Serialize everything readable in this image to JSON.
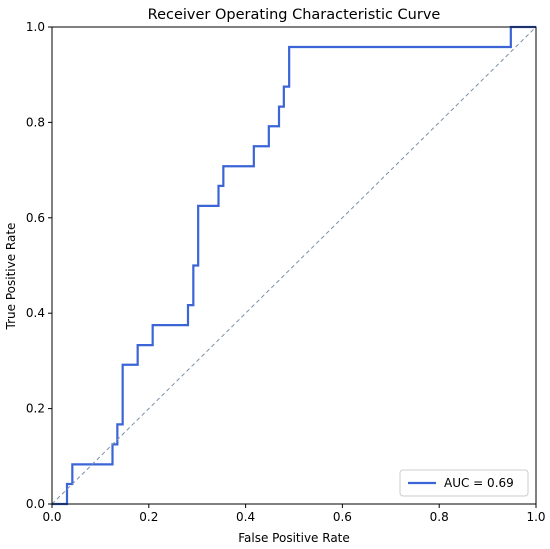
{
  "chart_data": {
    "type": "line",
    "title": "Receiver Operating Characteristic Curve",
    "xlabel": "False Positive Rate",
    "ylabel": "True Positive Rate",
    "xlim": [
      0,
      1
    ],
    "ylim": [
      0,
      1
    ],
    "xticks": [
      0.0,
      0.2,
      0.4,
      0.6,
      0.8,
      1.0
    ],
    "yticks": [
      0.0,
      0.2,
      0.4,
      0.6,
      0.8,
      1.0
    ],
    "xtick_labels": [
      "0.0",
      "0.2",
      "0.4",
      "0.6",
      "0.8",
      "1.0"
    ],
    "ytick_labels": [
      "0.0",
      "0.2",
      "0.4",
      "0.6",
      "0.8",
      "1.0"
    ],
    "grid": false,
    "legend_position": "lower-right",
    "series": [
      {
        "name": "AUC = 0.69",
        "color": "#3b65d6",
        "x": [
          0,
          0.031,
          0.031,
          0.042,
          0.042,
          0.125,
          0.125,
          0.135,
          0.135,
          0.146,
          0.146,
          0.177,
          0.177,
          0.208,
          0.208,
          0.281,
          0.281,
          0.292,
          0.292,
          0.302,
          0.302,
          0.344,
          0.344,
          0.354,
          0.354,
          0.417,
          0.417,
          0.448,
          0.448,
          0.469,
          0.469,
          0.479,
          0.479,
          0.49,
          0.49,
          0.948,
          0.948,
          1.0
        ],
        "y": [
          0,
          0,
          0.042,
          0.042,
          0.083,
          0.083,
          0.125,
          0.125,
          0.167,
          0.167,
          0.292,
          0.292,
          0.333,
          0.333,
          0.375,
          0.375,
          0.417,
          0.417,
          0.5,
          0.5,
          0.625,
          0.625,
          0.667,
          0.667,
          0.708,
          0.708,
          0.75,
          0.75,
          0.792,
          0.792,
          0.833,
          0.833,
          0.875,
          0.875,
          0.958,
          0.958,
          1.0,
          1.0
        ]
      },
      {
        "name": "",
        "color": "#7a8fa6",
        "style": "dashed",
        "x": [
          0,
          1
        ],
        "y": [
          0,
          1
        ]
      }
    ]
  }
}
